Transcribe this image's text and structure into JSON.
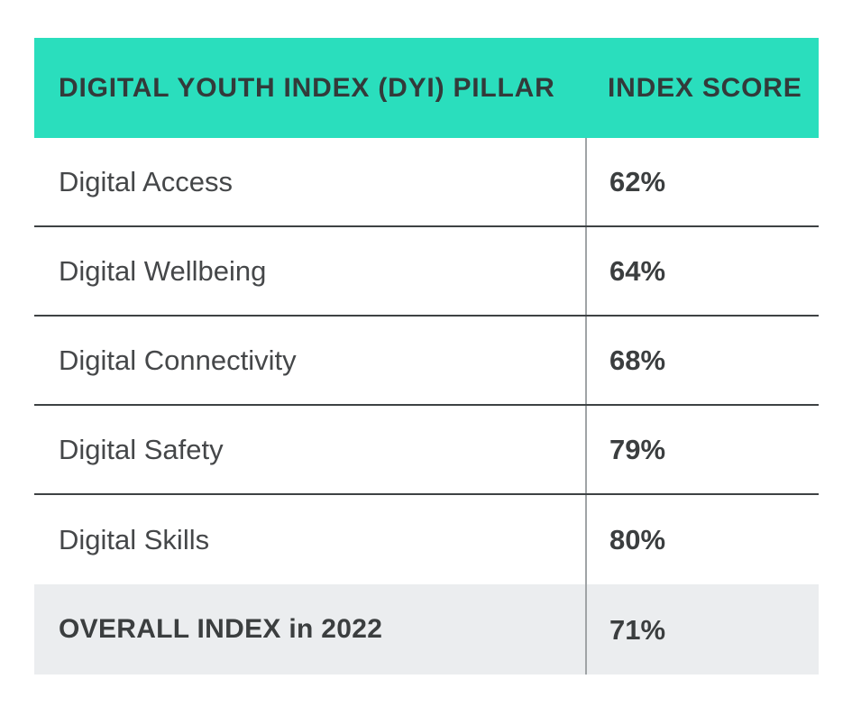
{
  "table": {
    "header": {
      "pillar_label": "DIGITAL YOUTH INDEX (DYI) PILLAR",
      "score_label": "INDEX SCORE"
    },
    "rows": [
      {
        "label": "Digital Access",
        "score": "62%"
      },
      {
        "label": "Digital Wellbeing",
        "score": "64%"
      },
      {
        "label": "Digital Connectivity",
        "score": "68%"
      },
      {
        "label": "Digital Safety",
        "score": "79%"
      },
      {
        "label": "Digital Skills",
        "score": "80%"
      }
    ],
    "footer": {
      "label": "OVERALL INDEX in 2022",
      "score": "71%"
    }
  },
  "colors": {
    "header_bg": "#2adebd",
    "footer_bg": "#ebedef",
    "header_text": "#333a3a",
    "label_text": "#454749",
    "score_text": "#3b3e3f",
    "row_line": "#3e4244",
    "column_divider": "#a0a4a6"
  },
  "chart_data": {
    "type": "table",
    "title": "Digital Youth Index (DYI) pillar index scores",
    "columns": [
      "DIGITAL YOUTH INDEX (DYI) PILLAR",
      "INDEX SCORE"
    ],
    "categories": [
      "Digital Access",
      "Digital Wellbeing",
      "Digital Connectivity",
      "Digital Safety",
      "Digital Skills",
      "OVERALL INDEX in 2022"
    ],
    "values": [
      62,
      64,
      68,
      79,
      80,
      71
    ],
    "unit": "%"
  }
}
